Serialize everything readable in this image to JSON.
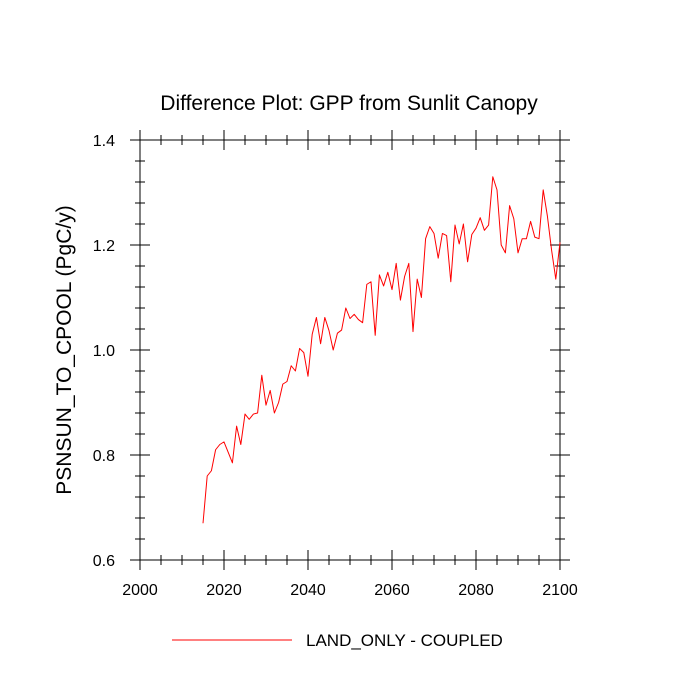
{
  "chart_data": {
    "type": "line",
    "title": "Difference Plot: GPP from Sunlit Canopy",
    "xlabel": "",
    "ylabel": "PSNSUN_TO_CPOOL  (PgC/y)",
    "xlim": [
      2000,
      2100
    ],
    "ylim": [
      0.6,
      1.4
    ],
    "x_ticks": [
      2000,
      2020,
      2040,
      2060,
      2080,
      2100
    ],
    "x_tick_labels": [
      "2000",
      "2020",
      "2040",
      "2060",
      "2080",
      "2100"
    ],
    "y_ticks": [
      0.6,
      0.8,
      1.0,
      1.2,
      1.4
    ],
    "y_tick_labels": [
      "0.6",
      "0.8",
      "1.0",
      "1.2",
      "1.4"
    ],
    "legend": {
      "position": "bottom-center"
    },
    "series": [
      {
        "name": "LAND_ONLY - COUPLED",
        "color": "#ff0000",
        "x": [
          2015,
          2016,
          2017,
          2018,
          2019,
          2020,
          2021,
          2022,
          2023,
          2024,
          2025,
          2026,
          2027,
          2028,
          2029,
          2030,
          2031,
          2032,
          2033,
          2034,
          2035,
          2036,
          2037,
          2038,
          2039,
          2040,
          2041,
          2042,
          2043,
          2044,
          2045,
          2046,
          2047,
          2048,
          2049,
          2050,
          2051,
          2052,
          2053,
          2054,
          2055,
          2056,
          2057,
          2058,
          2059,
          2060,
          2061,
          2062,
          2063,
          2064,
          2065,
          2066,
          2067,
          2068,
          2069,
          2070,
          2071,
          2072,
          2073,
          2074,
          2075,
          2076,
          2077,
          2078,
          2079,
          2080,
          2081,
          2082,
          2083,
          2084,
          2085,
          2086,
          2087,
          2088,
          2089,
          2090,
          2091,
          2092,
          2093,
          2094,
          2095,
          2096,
          2097,
          2098,
          2099,
          2100
        ],
        "y": [
          0.67,
          0.76,
          0.77,
          0.81,
          0.82,
          0.825,
          0.805,
          0.785,
          0.855,
          0.82,
          0.878,
          0.868,
          0.878,
          0.88,
          0.952,
          0.895,
          0.923,
          0.88,
          0.9,
          0.935,
          0.94,
          0.97,
          0.96,
          1.003,
          0.995,
          0.95,
          1.03,
          1.062,
          1.012,
          1.062,
          1.037,
          1.0,
          1.032,
          1.038,
          1.08,
          1.06,
          1.068,
          1.058,
          1.052,
          1.125,
          1.13,
          1.028,
          1.143,
          1.122,
          1.148,
          1.115,
          1.165,
          1.095,
          1.14,
          1.165,
          1.035,
          1.135,
          1.1,
          1.212,
          1.235,
          1.222,
          1.175,
          1.222,
          1.218,
          1.13,
          1.238,
          1.202,
          1.24,
          1.168,
          1.22,
          1.232,
          1.252,
          1.228,
          1.238,
          1.33,
          1.305,
          1.2,
          1.185,
          1.275,
          1.25,
          1.185,
          1.212,
          1.212,
          1.245,
          1.215,
          1.212,
          1.305,
          1.255,
          1.19,
          1.135,
          1.205
        ]
      }
    ]
  }
}
